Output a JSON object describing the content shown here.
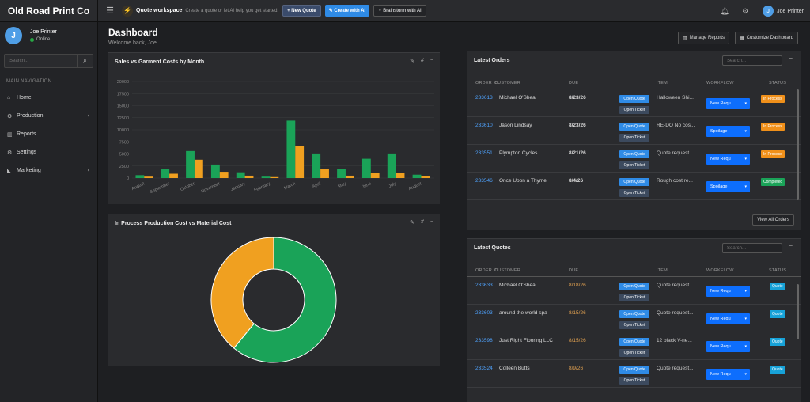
{
  "app": {
    "brand": "Old Road Print Co"
  },
  "topbar": {
    "workspace_title": "Quote workspace",
    "workspace_sub": "Create a quote or let AI help you get started.",
    "new_quote": "+ New Quote",
    "create_ai": "✎ Create with AI",
    "brainstorm": "♀ Brainstorm with AI",
    "user": "Joe Printer",
    "avatar_initial": "J"
  },
  "sidebar": {
    "user_name": "Joe Printer",
    "status": "Online",
    "avatar_initial": "J",
    "search_placeholder": "Search...",
    "nav_header": "MAIN NAVIGATION",
    "items": [
      {
        "label": "Home",
        "icon": "home-icon"
      },
      {
        "label": "Production",
        "icon": "cogs-icon",
        "expandable": true
      },
      {
        "label": "Reports",
        "icon": "bar-chart-icon"
      },
      {
        "label": "Settings",
        "icon": "gear-icon"
      },
      {
        "label": "Marketing",
        "icon": "megaphone-icon",
        "expandable": true
      }
    ]
  },
  "header": {
    "title": "Dashboard",
    "subtitle": "Welcome back, Joe.",
    "manage_reports": "Manage Reports",
    "customize": "Customize Dashboard"
  },
  "sales_chart": {
    "title": "Sales vs Garment Costs by Month"
  },
  "donut_chart": {
    "title": "In Process Production Cost vs Material Cost"
  },
  "chart_data": [
    {
      "type": "bar",
      "title": "Sales vs Garment Costs by Month",
      "categories": [
        "August",
        "September",
        "October",
        "November",
        "January",
        "February",
        "March",
        "April",
        "May",
        "June",
        "July",
        "August"
      ],
      "series": [
        {
          "color": "#1aa358",
          "values": [
            600,
            1800,
            5600,
            2800,
            1200,
            300,
            11900,
            5100,
            1900,
            4000,
            5100,
            700
          ]
        },
        {
          "color": "#f0a020",
          "values": [
            300,
            900,
            3800,
            1300,
            500,
            200,
            6700,
            1800,
            500,
            1000,
            1000,
            400
          ]
        }
      ],
      "yticks": [
        "0",
        "2500",
        "5000",
        "7500",
        "10000",
        "12500",
        "15000",
        "17500",
        "20000"
      ],
      "ylim": [
        0,
        20000
      ]
    },
    {
      "type": "pie",
      "title": "In Process Production Cost vs Material Cost",
      "slices": [
        {
          "color": "#1aa358",
          "value": 61
        },
        {
          "color": "#f0a020",
          "value": 39
        }
      ]
    }
  ],
  "orders": {
    "title": "Latest Orders",
    "search_placeholder": "Search...",
    "headers": [
      "ORDER ID",
      "CUSTOMER",
      "DUE",
      "ITEM",
      "WORKFLOW",
      "STATUS"
    ],
    "open_quote": "Open Quote",
    "open_ticket": "Open Ticket",
    "view_all": "View All Orders",
    "rows": [
      {
        "id": "233613",
        "customer": "Michael O'Shea",
        "due": "8/23/26",
        "item": "Halloween Shi...",
        "workflow": "New Requ",
        "status": "In Process",
        "status_color": "#f0901a"
      },
      {
        "id": "233610",
        "customer": "Jason Lindsay",
        "due": "8/23/26",
        "item": "RE-DO No cos...",
        "workflow": "Spoilage",
        "status": "In Process",
        "status_color": "#f0901a"
      },
      {
        "id": "233551",
        "customer": "Plympton Cycles",
        "due": "8/21/26",
        "item": "Quote request...",
        "workflow": "New Requ",
        "status": "In Process",
        "status_color": "#f0901a"
      },
      {
        "id": "233546",
        "customer": "Once Upon a Thyme",
        "due": "8/4/26",
        "item": "Rough cost re...",
        "workflow": "Spoilage",
        "status": "Completed",
        "status_color": "#1aa358"
      }
    ]
  },
  "quotes": {
    "title": "Latest Quotes",
    "search_placeholder": "Search...",
    "headers": [
      "ORDER ID",
      "CUSTOMER",
      "DUE",
      "ITEM",
      "WORKFLOW",
      "STATUS"
    ],
    "open_quote": "Open Quote",
    "open_ticket": "Open Ticket",
    "rows": [
      {
        "id": "233633",
        "customer": "Michael O'Shea",
        "due": "8/18/26",
        "item": "Quote request...",
        "workflow": "New Requ",
        "status": "Quote"
      },
      {
        "id": "233603",
        "customer": "around the world spa",
        "due": "8/15/26",
        "item": "Quote request...",
        "workflow": "New Requ",
        "status": "Quote"
      },
      {
        "id": "233598",
        "customer": "Just Right Flooring LLC",
        "due": "8/15/26",
        "item": "12 black V-ne...",
        "workflow": "New Requ",
        "status": "Quote"
      },
      {
        "id": "233524",
        "customer": "Colleen Butts",
        "due": "8/9/26",
        "item": "Quote request...",
        "workflow": "New Requ",
        "status": "Quote"
      }
    ]
  }
}
